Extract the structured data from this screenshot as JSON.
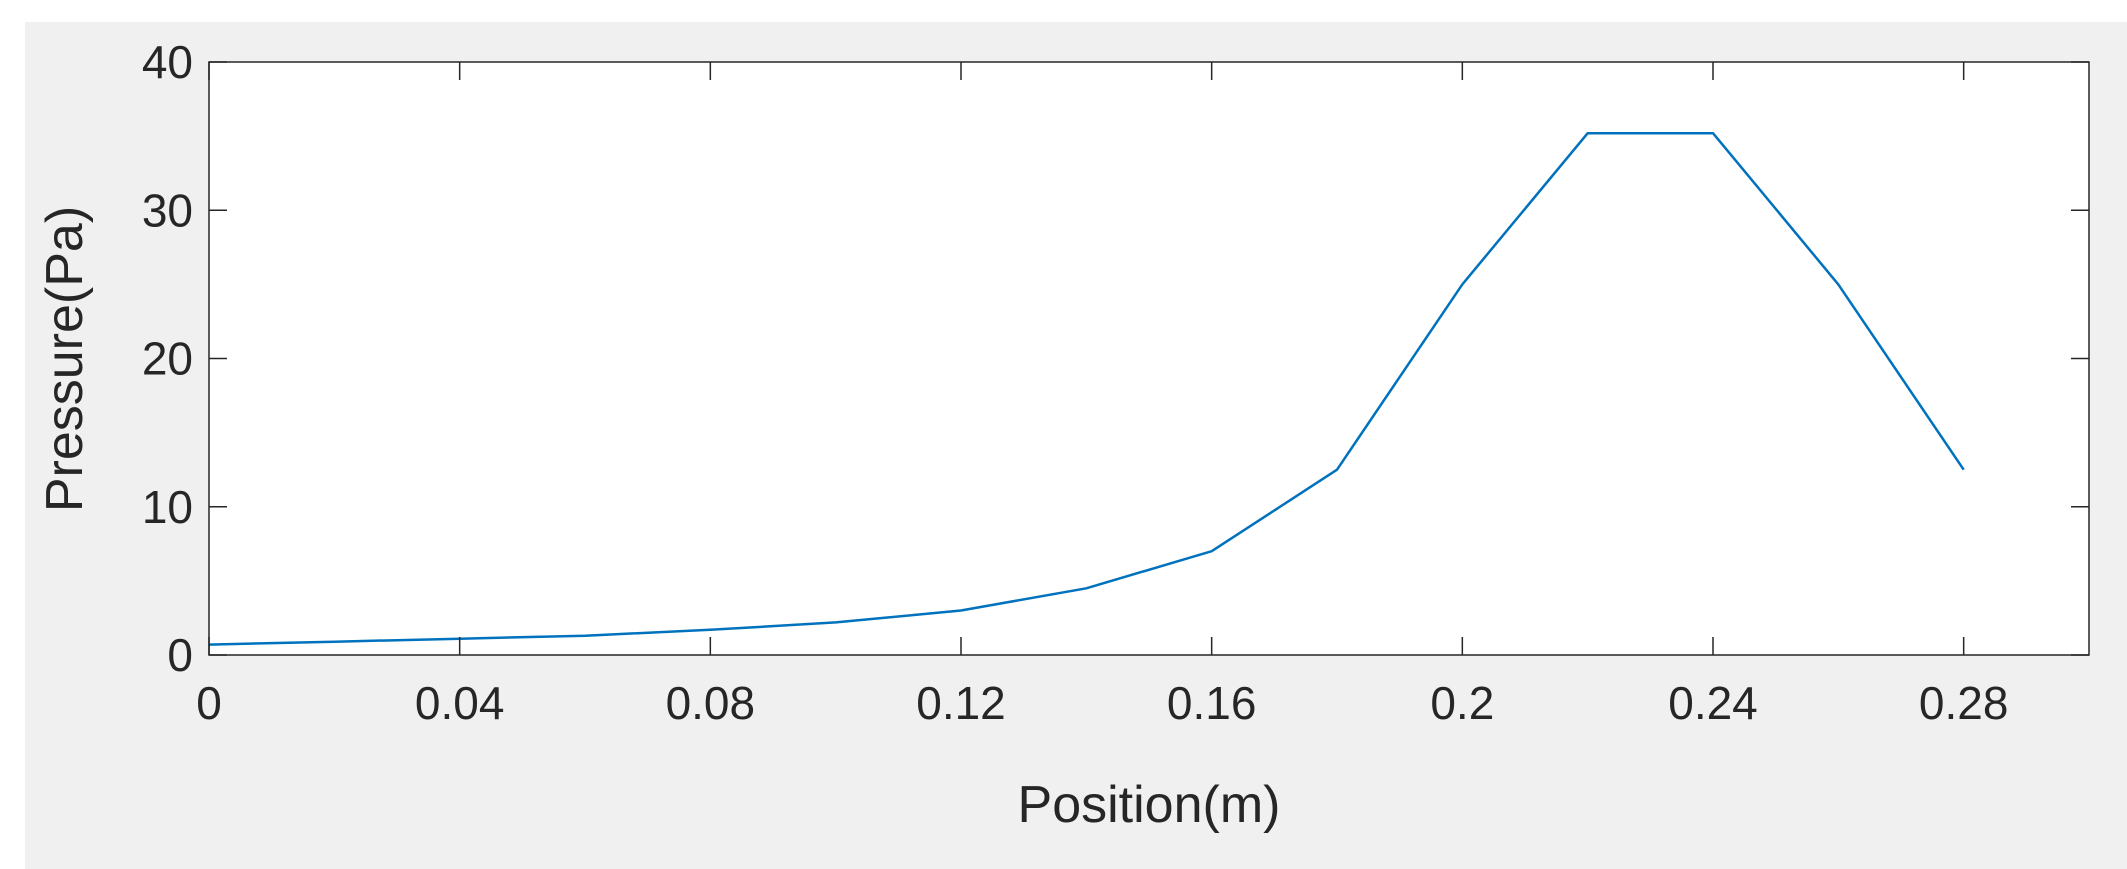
{
  "colors": {
    "figure_background": "#f0f0f0",
    "axes_background": "#ffffff",
    "axis_color": "#262626",
    "series_color": "#0072bd"
  },
  "chart_data": {
    "type": "line",
    "title": "",
    "xlabel": "Position(m)",
    "ylabel": "Pressure(Pa)",
    "xlim": [
      0,
      0.3
    ],
    "ylim": [
      0,
      40
    ],
    "xticks": [
      0,
      0.04,
      0.08,
      0.12,
      0.16,
      0.2,
      0.24,
      0.28
    ],
    "xtick_labels": [
      "0",
      "0.04",
      "0.08",
      "0.12",
      "0.16",
      "0.2",
      "0.24",
      "0.28"
    ],
    "yticks": [
      0,
      10,
      20,
      30,
      40
    ],
    "ytick_labels": [
      "0",
      "10",
      "20",
      "30",
      "40"
    ],
    "grid": false,
    "legend": false,
    "series": [
      {
        "x": [
          0,
          0.02,
          0.04,
          0.06,
          0.08,
          0.1,
          0.12,
          0.14,
          0.16,
          0.18,
          0.2,
          0.22,
          0.24,
          0.26,
          0.28
        ],
        "y": [
          0.7,
          0.9,
          1.1,
          1.3,
          1.7,
          2.2,
          3.0,
          4.5,
          7.0,
          12.5,
          25.0,
          35.2,
          35.2,
          25.0,
          12.5
        ]
      }
    ]
  }
}
